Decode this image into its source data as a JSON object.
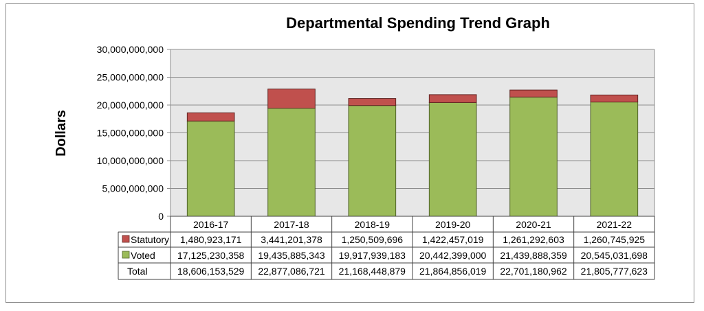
{
  "chart_data": {
    "type": "bar",
    "stacked": true,
    "title": "Departmental Spending Trend Graph",
    "ylabel": "Dollars",
    "xlabel": "",
    "ylim": [
      0,
      30000000000
    ],
    "yticks": [
      0,
      5000000000,
      10000000000,
      15000000000,
      20000000000,
      25000000000,
      30000000000
    ],
    "ytick_labels": [
      "0",
      "5,000,000,000",
      "10,000,000,000",
      "15,000,000,000",
      "20,000,000,000",
      "25,000,000,000",
      "30,000,000,000"
    ],
    "grid": true,
    "categories": [
      "2016-17",
      "2017-18",
      "2018-19",
      "2019-20",
      "2020-21",
      "2021-22"
    ],
    "series": [
      {
        "name": "Voted",
        "color": "#9bbb59",
        "values": [
          17125230358,
          19435885343,
          19917939183,
          20442399000,
          21439888359,
          20545031698
        ],
        "labels": [
          "17,125,230,358",
          "19,435,885,343",
          "19,917,939,183",
          "20,442,399,000",
          "21,439,888,359",
          "20,545,031,698"
        ]
      },
      {
        "name": "Statutory",
        "color": "#c0504d",
        "values": [
          1480923171,
          3441201378,
          1250509696,
          1422457019,
          1261292603,
          1260745925
        ],
        "labels": [
          "1,480,923,171",
          "3,441,201,378",
          "1,250,509,696",
          "1,422,457,019",
          "1,261,292,603",
          "1,260,745,925"
        ]
      }
    ],
    "totals": {
      "name": "Total",
      "values": [
        18606153529,
        22877086721,
        21168448879,
        21864856019,
        22701180962,
        21805777623
      ],
      "labels": [
        "18,606,153,529",
        "22,877,086,721",
        "21,168,448,879",
        "21,864,856,019",
        "22,701,180,962",
        "21,805,777,623"
      ]
    },
    "plot_background": "#e7e7e7",
    "table_row_order": [
      "Statutory",
      "Voted"
    ]
  }
}
